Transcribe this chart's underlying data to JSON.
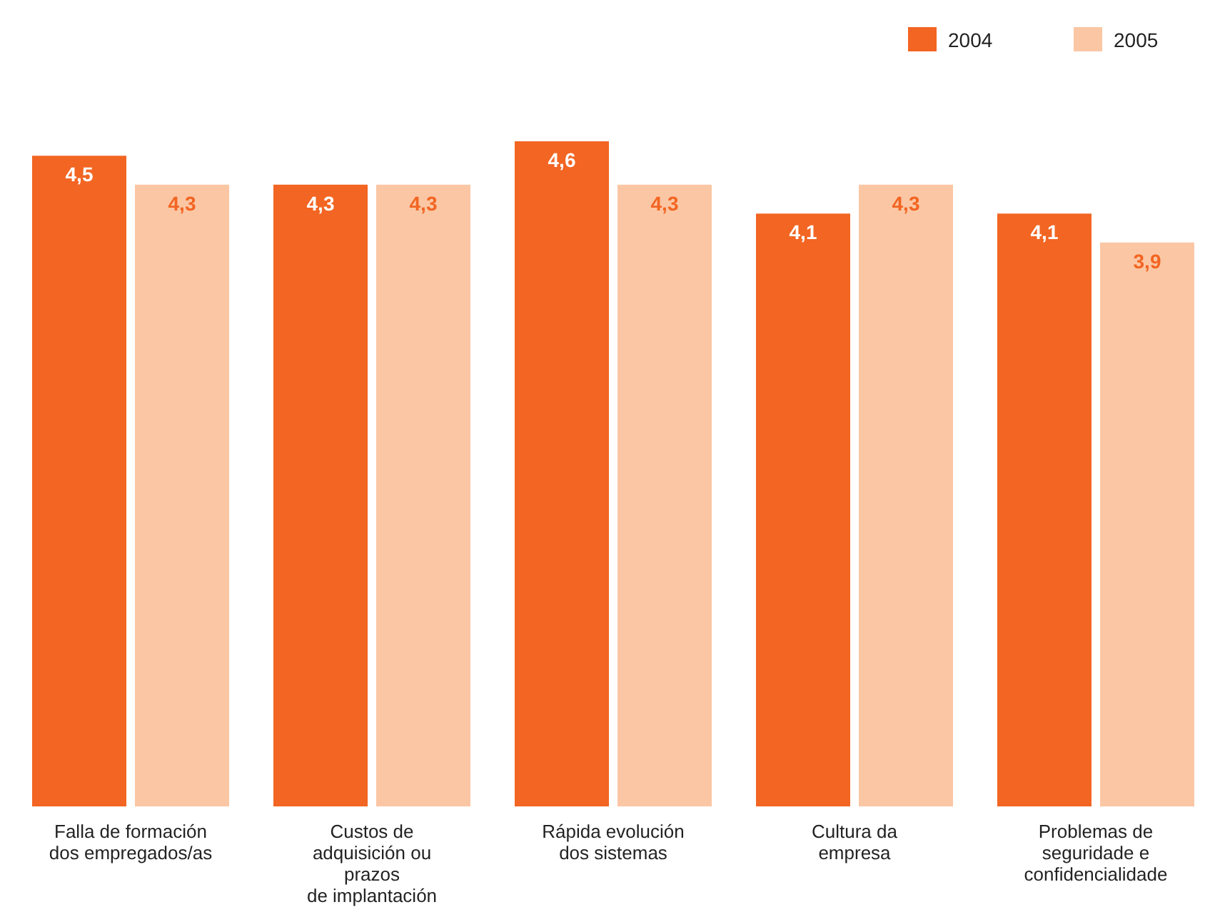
{
  "chart_data": {
    "type": "bar",
    "categories": [
      "Falla de formación\ndos empregados/as",
      "Custos de\nadquisición ou\nprazos\nde implantación",
      "Rápida evolución\ndos sistemas",
      "Cultura da\nempresa",
      "Problemas de\nseguridade e\nconfidencialidade"
    ],
    "series": [
      {
        "name": "2004",
        "color": "#f26522",
        "values": [
          4.5,
          4.3,
          4.6,
          4.1,
          4.1
        ],
        "value_labels": [
          "4,5",
          "4,3",
          "4,6",
          "4,1",
          "4,1"
        ]
      },
      {
        "name": "2005",
        "color": "#fbc6a4",
        "values": [
          4.3,
          4.3,
          4.3,
          4.3,
          3.9
        ],
        "value_labels": [
          "4,3",
          "4,3",
          "4,3",
          "4,3",
          "3,9"
        ]
      }
    ],
    "legend": "top right"
  }
}
